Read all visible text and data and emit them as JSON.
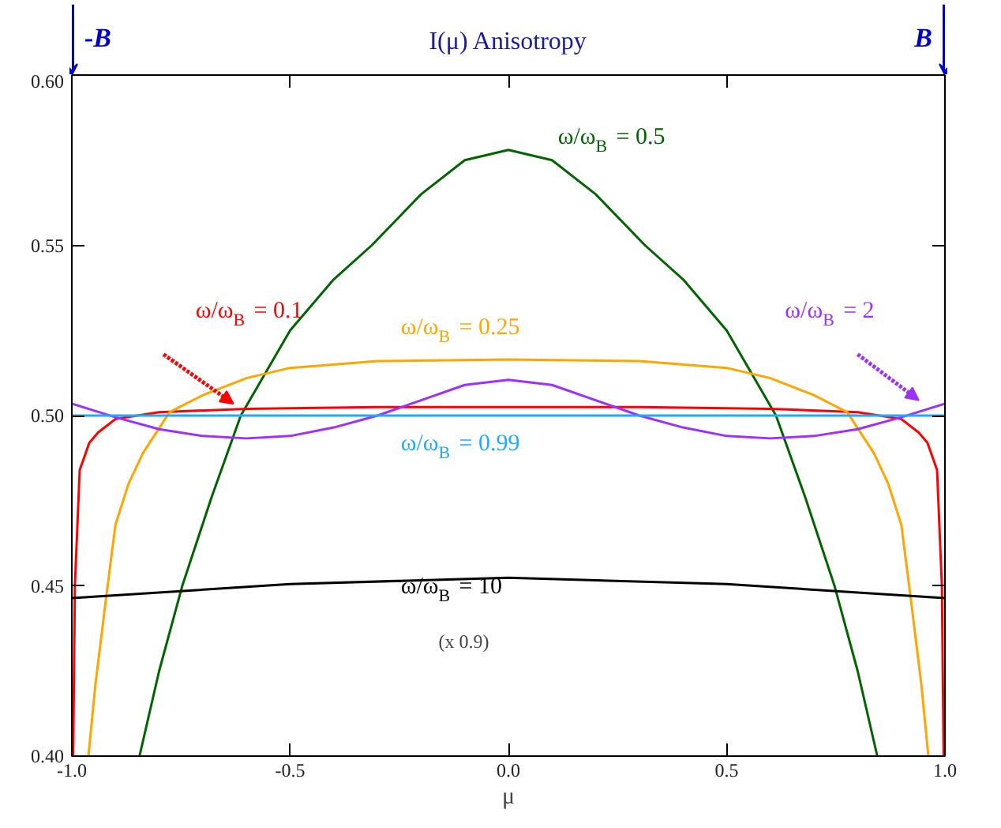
{
  "chart_data": {
    "type": "line",
    "title": "I(μ) Anisotropy",
    "xlabel": "μ",
    "xlim": [
      -1,
      1
    ],
    "ylim": [
      0.4,
      0.6
    ],
    "xticks": [
      {
        "value": -1,
        "label": "-1.0"
      },
      {
        "value": -0.5,
        "label": "-0.5"
      },
      {
        "value": 0,
        "label": "0.0"
      },
      {
        "value": 0.5,
        "label": "0.5"
      },
      {
        "value": 1,
        "label": "1.0"
      }
    ],
    "yticks": [
      {
        "value": 0.4,
        "label": "0.40"
      },
      {
        "value": 0.45,
        "label": "0.45"
      },
      {
        "value": 0.5,
        "label": "0.50"
      },
      {
        "value": 0.55,
        "label": "0.55"
      },
      {
        "value": 0.6,
        "label": "0.60"
      }
    ],
    "grid": false,
    "marker": "none",
    "line_style": "solid",
    "series": [
      {
        "name": "ω/ω$_{B}$ = 0.5",
        "color": "#006400",
        "x": [
          -0.845,
          -0.8,
          -0.747,
          -0.68,
          -0.613,
          -0.5,
          -0.4,
          -0.313,
          -0.2,
          -0.1,
          0,
          0.1,
          0.2,
          0.313,
          0.4,
          0.5,
          0.613,
          0.68,
          0.747,
          0.8,
          0.845
        ],
        "values": [
          0.4,
          0.425,
          0.45,
          0.476,
          0.5,
          0.525,
          0.54,
          0.55,
          0.565,
          0.575,
          0.578,
          0.575,
          0.565,
          0.55,
          0.54,
          0.525,
          0.5,
          0.476,
          0.45,
          0.425,
          0.4
        ]
      },
      {
        "name": "ω/ω$_{B}$ = 0.1",
        "color": "#ff0000",
        "x": [
          -0.997,
          -0.993,
          -0.982,
          -0.96,
          -0.94,
          -0.9,
          -0.8,
          -0.6,
          -0.3,
          0,
          0.3,
          0.6,
          0.8,
          0.9,
          0.94,
          0.96,
          0.982,
          0.993,
          0.997
        ],
        "values": [
          0.4,
          0.45,
          0.484,
          0.492,
          0.495,
          0.499,
          0.501,
          0.502,
          0.5025,
          0.5025,
          0.5025,
          0.502,
          0.501,
          0.499,
          0.495,
          0.492,
          0.484,
          0.45,
          0.4
        ]
      },
      {
        "name": "ω/ω$_{B}$ = 0.25",
        "color": "#ffa500",
        "x": [
          -0.962,
          -0.946,
          -0.92,
          -0.9,
          -0.87,
          -0.837,
          -0.776,
          -0.7,
          -0.6,
          -0.5,
          -0.3,
          0,
          0.3,
          0.5,
          0.6,
          0.7,
          0.776,
          0.837,
          0.87,
          0.9,
          0.92,
          0.946,
          0.962
        ],
        "values": [
          0.4,
          0.421,
          0.448,
          0.468,
          0.48,
          0.489,
          0.501,
          0.506,
          0.511,
          0.514,
          0.516,
          0.5165,
          0.516,
          0.514,
          0.511,
          0.506,
          0.501,
          0.489,
          0.48,
          0.468,
          0.448,
          0.421,
          0.4
        ]
      },
      {
        "name": "ω/ω$_{B}$ = 2",
        "color": "#9b30ff",
        "x": [
          -1,
          -0.9,
          -0.8,
          -0.7,
          -0.6,
          -0.5,
          -0.4,
          -0.3,
          -0.2,
          -0.1,
          0,
          0.1,
          0.2,
          0.3,
          0.4,
          0.5,
          0.6,
          0.7,
          0.8,
          0.9,
          1
        ],
        "values": [
          0.5035,
          0.4995,
          0.496,
          0.494,
          0.4933,
          0.494,
          0.4965,
          0.5,
          0.5045,
          0.509,
          0.5105,
          0.509,
          0.5045,
          0.5,
          0.4965,
          0.494,
          0.4933,
          0.494,
          0.496,
          0.4995,
          0.5035
        ]
      },
      {
        "name": "ω/ω$_{B}$ = 0.99",
        "color": "#1eaaff",
        "x": [
          -1,
          1
        ],
        "values": [
          0.5,
          0.5
        ]
      },
      {
        "name": "ω/ω$_{B}$ = 10",
        "color": "#000000",
        "x": [
          -1,
          -0.5,
          0,
          0.5,
          1
        ],
        "values": [
          0.4464,
          0.4505,
          0.4524,
          0.4505,
          0.4464
        ]
      }
    ],
    "annotations": [
      "(x 0.9)",
      "-B",
      "B"
    ]
  }
}
